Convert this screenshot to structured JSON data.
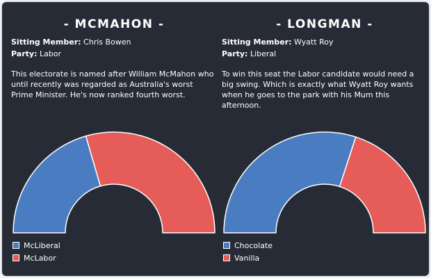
{
  "colors": {
    "blue": "#4a7cc2",
    "red": "#e65c58",
    "background": "#262b35",
    "outer": "#f2f4f7"
  },
  "panels": [
    {
      "title": "- MCMAHON -",
      "sitting_label": "Sitting Member:",
      "sitting_value": " Chris Bowen",
      "party_label": "Party:",
      "party_value": " Labor",
      "description": "This electorate is named after William McMahon who until recently was regarded as Australia's worst Prime Minister. He's now ranked fourth worst."
    },
    {
      "title": "- LONGMAN -",
      "sitting_label": "Sitting Member:",
      "sitting_value": " Wyatt Roy",
      "party_label": "Party:",
      "party_value": " Liberal",
      "description": "To win this seat the Labor candidate would need a big swing. Which is exactly what Wyatt Roy wants when he goes to the park with his Mum this afternoon."
    }
  ],
  "chart_data": [
    {
      "type": "pie",
      "style": "half-donut",
      "categories": [
        "McLiberal",
        "McLabor"
      ],
      "values": [
        41,
        59
      ],
      "colors": [
        "#4a7cc2",
        "#e65c58"
      ],
      "legend_position": "bottom-left"
    },
    {
      "type": "pie",
      "style": "half-donut",
      "categories": [
        "Chocolate",
        "Vanilla"
      ],
      "values": [
        60,
        40
      ],
      "colors": [
        "#4a7cc2",
        "#e65c58"
      ],
      "legend_position": "bottom-left"
    }
  ]
}
